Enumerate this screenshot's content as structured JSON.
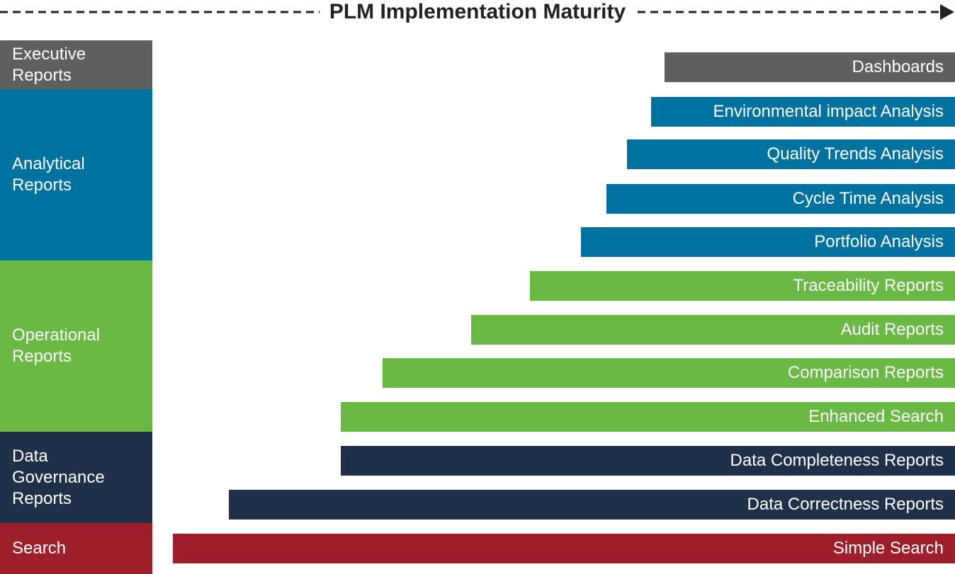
{
  "title": "PLM Implementation Maturity",
  "colors": {
    "executive": "#5f5f5f",
    "analytical": "#0072a0",
    "operational": "#6ab945",
    "governance": "#1f3149",
    "search": "#9d1f2b"
  },
  "categories": [
    {
      "label": "Executive\nReports",
      "color_key": "executive"
    },
    {
      "label": "Analytical\nReports",
      "color_key": "analytical"
    },
    {
      "label": "Operational\nReports",
      "color_key": "operational"
    },
    {
      "label": "Data\nGovernance\nReports",
      "color_key": "governance"
    },
    {
      "label": "Search",
      "color_key": "search"
    }
  ],
  "bars": [
    {
      "label": "Dashboards",
      "color_key": "executive"
    },
    {
      "label": "Environmental impact Analysis",
      "color_key": "analytical"
    },
    {
      "label": "Quality Trends Analysis",
      "color_key": "analytical"
    },
    {
      "label": "Cycle Time Analysis",
      "color_key": "analytical"
    },
    {
      "label": "Portfolio Analysis",
      "color_key": "analytical"
    },
    {
      "label": "Traceability Reports",
      "color_key": "operational"
    },
    {
      "label": "Audit Reports",
      "color_key": "operational"
    },
    {
      "label": "Comparison Reports",
      "color_key": "operational"
    },
    {
      "label": "Enhanced Search",
      "color_key": "operational"
    },
    {
      "label": "Data Completeness Reports",
      "color_key": "governance"
    },
    {
      "label": "Data Correctness Reports",
      "color_key": "governance"
    },
    {
      "label": "Simple Search",
      "color_key": "search"
    }
  ]
}
